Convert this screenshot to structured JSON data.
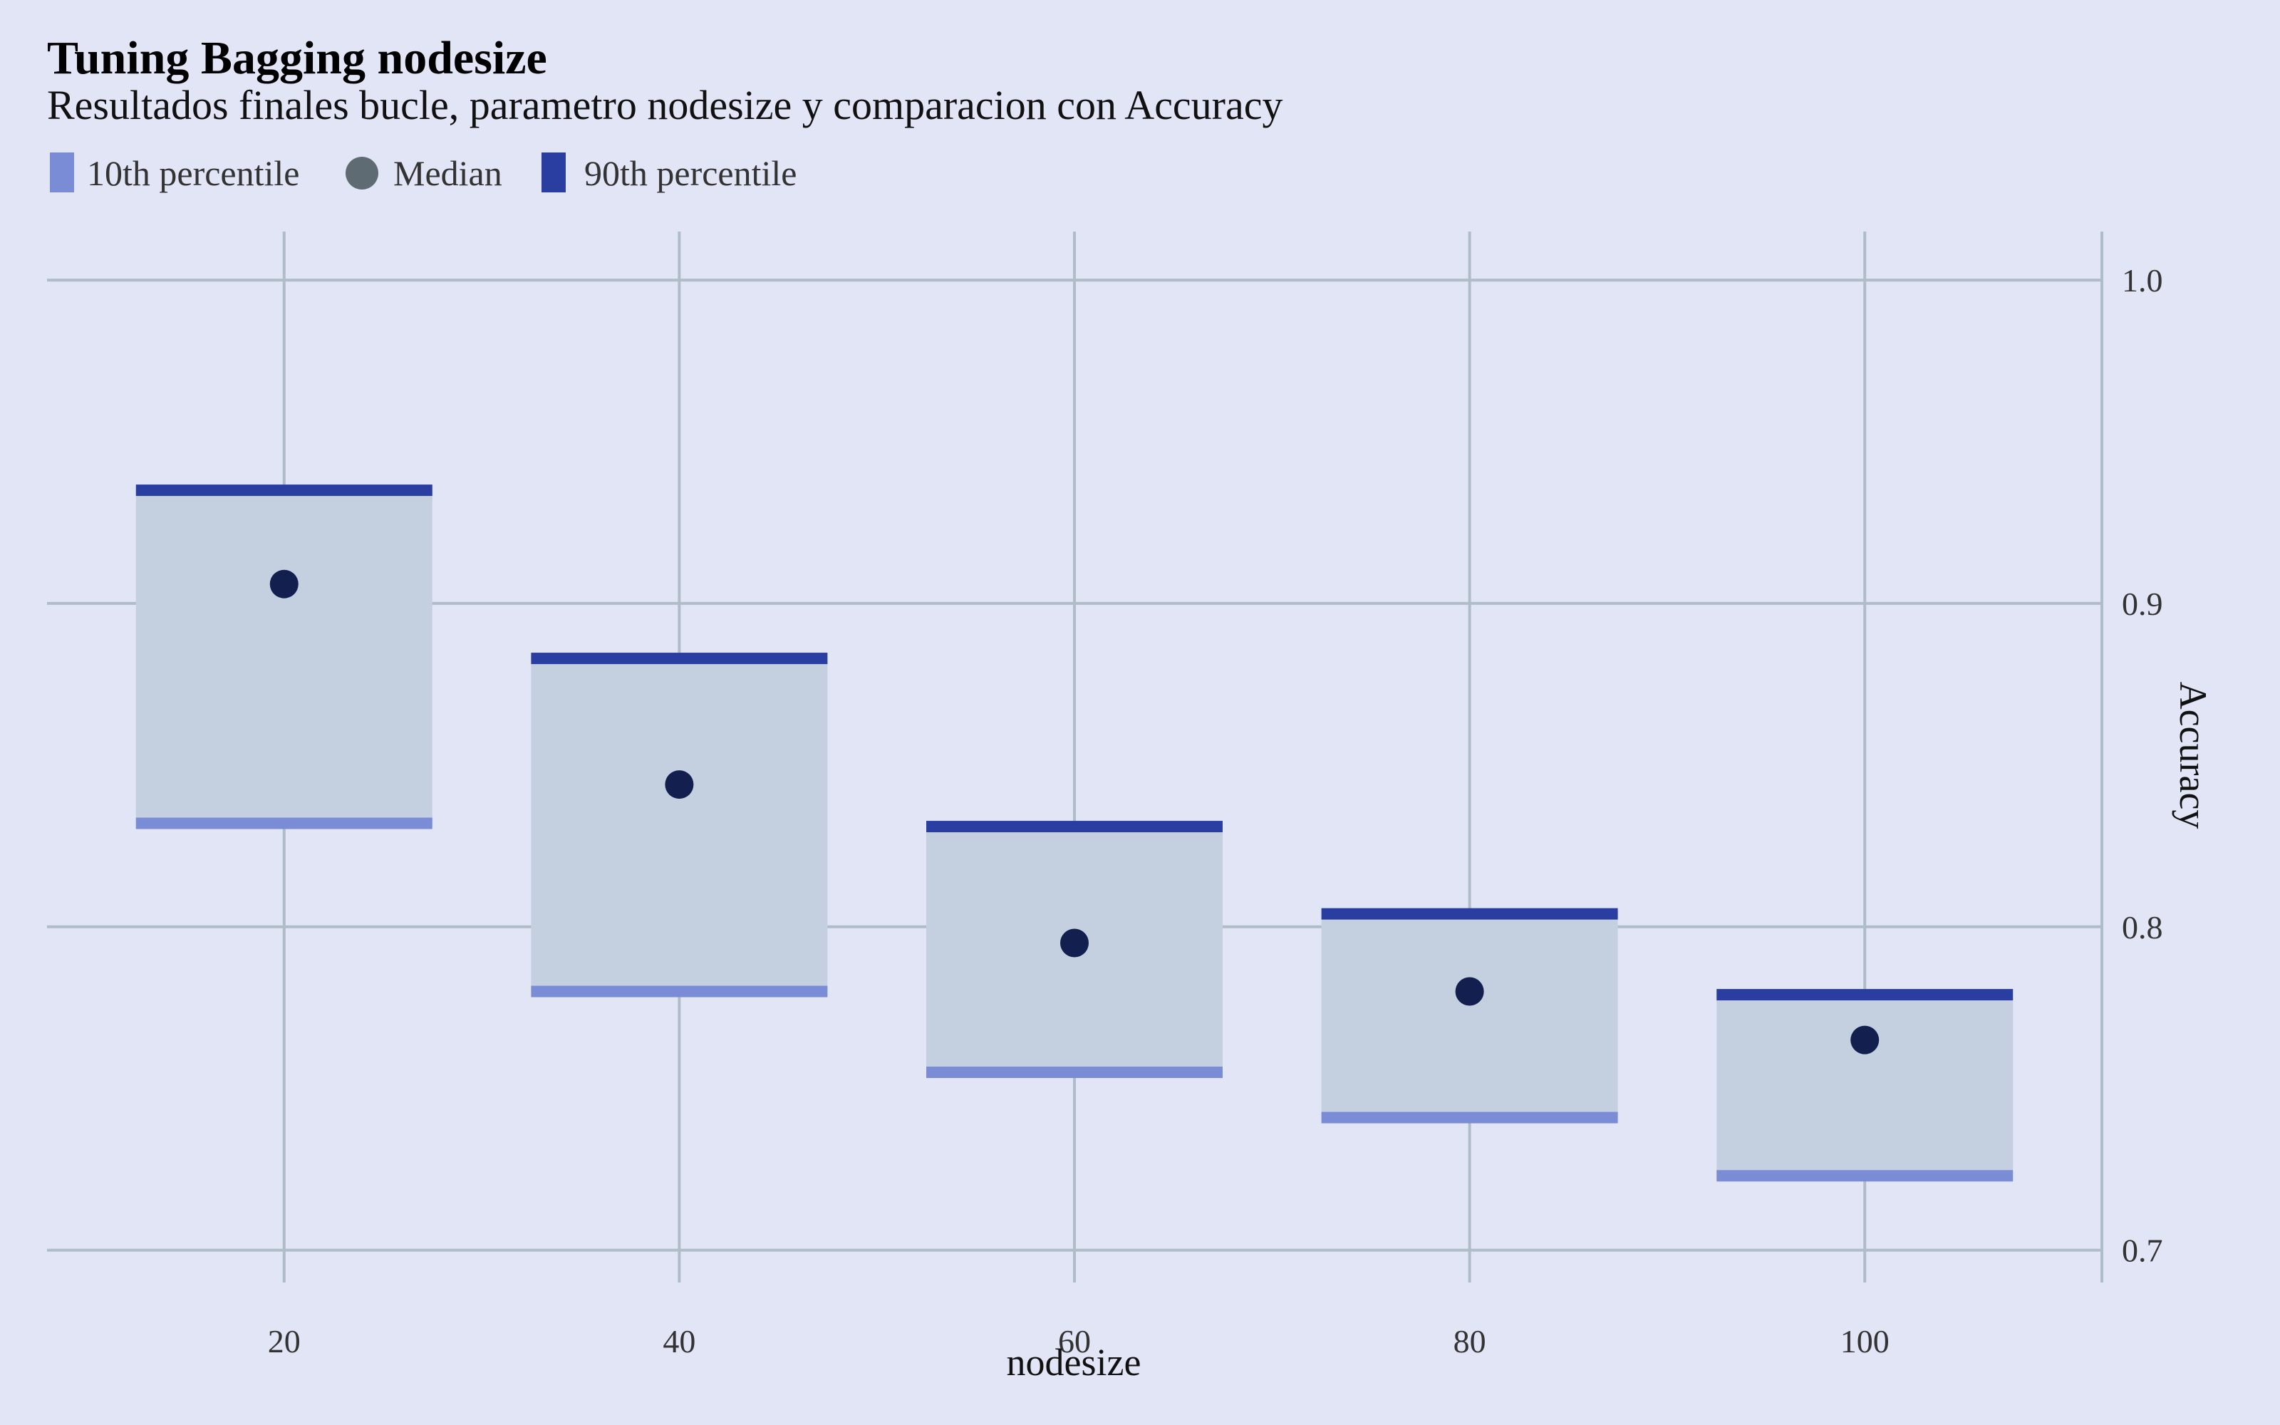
{
  "title": "Tuning Bagging nodesize",
  "subtitle": "Resultados finales bucle, parametro nodesize y comparacion con Accuracy",
  "legend": [
    {
      "label": "10th percentile",
      "shape": "bar",
      "color": "#7b8cd6"
    },
    {
      "label": "Median",
      "shape": "circle",
      "color": "#5f6b72"
    },
    {
      "label": "90th percentile",
      "shape": "bar",
      "color": "#2a3da0"
    }
  ],
  "colors": {
    "background": "#e1e5f6",
    "range_box": "#c4cfe0",
    "p10": "#7b8cd6",
    "p90": "#2a3da0",
    "median": "#13204f",
    "grid": "#aebdc8"
  },
  "chart_data": {
    "type": "bar",
    "title": "Tuning Bagging nodesize",
    "subtitle": "Resultados finales bucle, parametro nodesize y comparacion con Accuracy",
    "xlabel": "nodesize",
    "ylabel": "Accuracy",
    "x": [
      20,
      40,
      60,
      80,
      100
    ],
    "x_ticks": [
      20,
      40,
      60,
      80,
      100
    ],
    "y_ticks": [
      0.7,
      0.8,
      0.9,
      1.0
    ],
    "y_tick_labels": [
      "0.7",
      "0.8",
      "0.9",
      "1.0"
    ],
    "xlim": [
      8,
      112
    ],
    "ylim": [
      0.69,
      1.015
    ],
    "bar_half_width": 7.5,
    "y_axis_position": "right",
    "legend_position": "top-left",
    "grid": true,
    "series": [
      {
        "name": "10th percentile",
        "values": [
          0.832,
          0.78,
          0.755,
          0.741,
          0.723
        ]
      },
      {
        "name": "Median",
        "values": [
          0.906,
          0.844,
          0.795,
          0.78,
          0.765
        ]
      },
      {
        "name": "90th percentile",
        "values": [
          0.935,
          0.883,
          0.831,
          0.804,
          0.779
        ]
      }
    ]
  }
}
